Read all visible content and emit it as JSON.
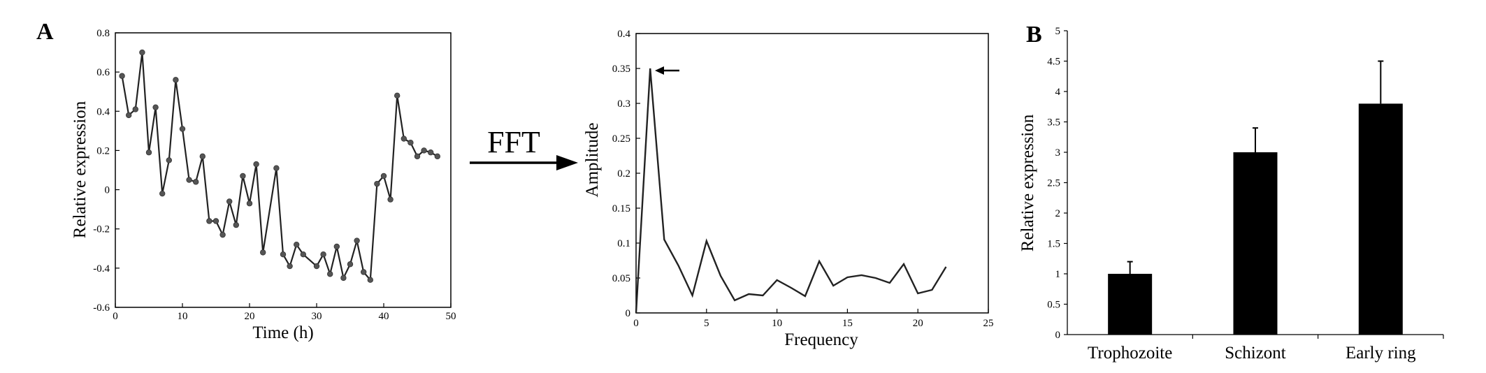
{
  "figure": {
    "panel_a_letter": "A",
    "panel_b_letter": "B",
    "transform_label": "FFT"
  },
  "chart_data": [
    {
      "type": "line",
      "xlabel": "Time (h)",
      "ylabel": "Relative expression",
      "xlim": [
        0,
        50
      ],
      "ylim": [
        -0.6,
        0.8
      ],
      "xticks": [
        "0",
        "10",
        "20",
        "30",
        "40",
        "50"
      ],
      "yticks": [
        "-0.6",
        "-0.4",
        "-0.2",
        "0",
        "0.2",
        "0.4",
        "0.6",
        "0.8"
      ],
      "markers": true,
      "x": [
        1,
        2,
        3,
        4,
        5,
        6,
        7,
        8,
        9,
        10,
        11,
        12,
        13,
        14,
        15,
        16,
        17,
        18,
        19,
        20,
        21,
        22,
        24,
        25,
        26,
        27,
        28,
        30,
        31,
        32,
        33,
        34,
        35,
        36,
        37,
        38,
        39,
        40,
        41,
        42,
        43,
        44,
        45,
        46,
        47,
        48
      ],
      "values": [
        0.58,
        0.38,
        0.41,
        0.7,
        0.19,
        0.42,
        -0.02,
        0.15,
        0.56,
        0.31,
        0.05,
        0.04,
        0.17,
        -0.16,
        -0.16,
        -0.23,
        -0.06,
        -0.18,
        0.07,
        -0.07,
        0.13,
        -0.32,
        0.11,
        -0.33,
        -0.39,
        -0.28,
        -0.33,
        -0.39,
        -0.33,
        -0.43,
        -0.29,
        -0.45,
        -0.38,
        -0.26,
        -0.42,
        -0.46,
        0.03,
        0.07,
        -0.05,
        0.48,
        0.26,
        0.24,
        0.17,
        0.2,
        0.19,
        0.17
      ]
    },
    {
      "type": "line",
      "xlabel": "Frequency",
      "ylabel": "Amplitude",
      "xlim": [
        0,
        25
      ],
      "ylim": [
        0,
        0.4
      ],
      "xticks": [
        "0",
        "5",
        "10",
        "15",
        "20",
        "25"
      ],
      "yticks": [
        "0",
        "0.05",
        "0.1",
        "0.15",
        "0.2",
        "0.25",
        "0.3",
        "0.35",
        "0.4"
      ],
      "annotation": "arrow pointing to peak at frequency 1",
      "x": [
        0,
        1,
        2,
        3,
        4,
        5,
        6,
        7,
        8,
        9,
        10,
        11,
        12,
        13,
        14,
        15,
        16,
        17,
        18,
        19,
        20,
        21,
        22
      ],
      "values": [
        0.0,
        0.35,
        0.105,
        0.068,
        0.025,
        0.103,
        0.053,
        0.018,
        0.027,
        0.025,
        0.047,
        0.036,
        0.024,
        0.074,
        0.039,
        0.051,
        0.054,
        0.05,
        0.043,
        0.07,
        0.028,
        0.033,
        0.066
      ]
    },
    {
      "type": "bar",
      "xlabel": "",
      "ylabel": "Relative expression",
      "ylim": [
        0,
        5
      ],
      "yticks": [
        "0",
        "0.5",
        "1",
        "1.5",
        "2",
        "2.5",
        "3",
        "3.5",
        "4",
        "4.5",
        "5"
      ],
      "categories": [
        "Trophozoite",
        "Schizont",
        "Early ring"
      ],
      "values": [
        1.0,
        3.0,
        3.8
      ],
      "error": [
        0.2,
        0.4,
        0.7
      ],
      "bar_color": "#000000"
    }
  ]
}
